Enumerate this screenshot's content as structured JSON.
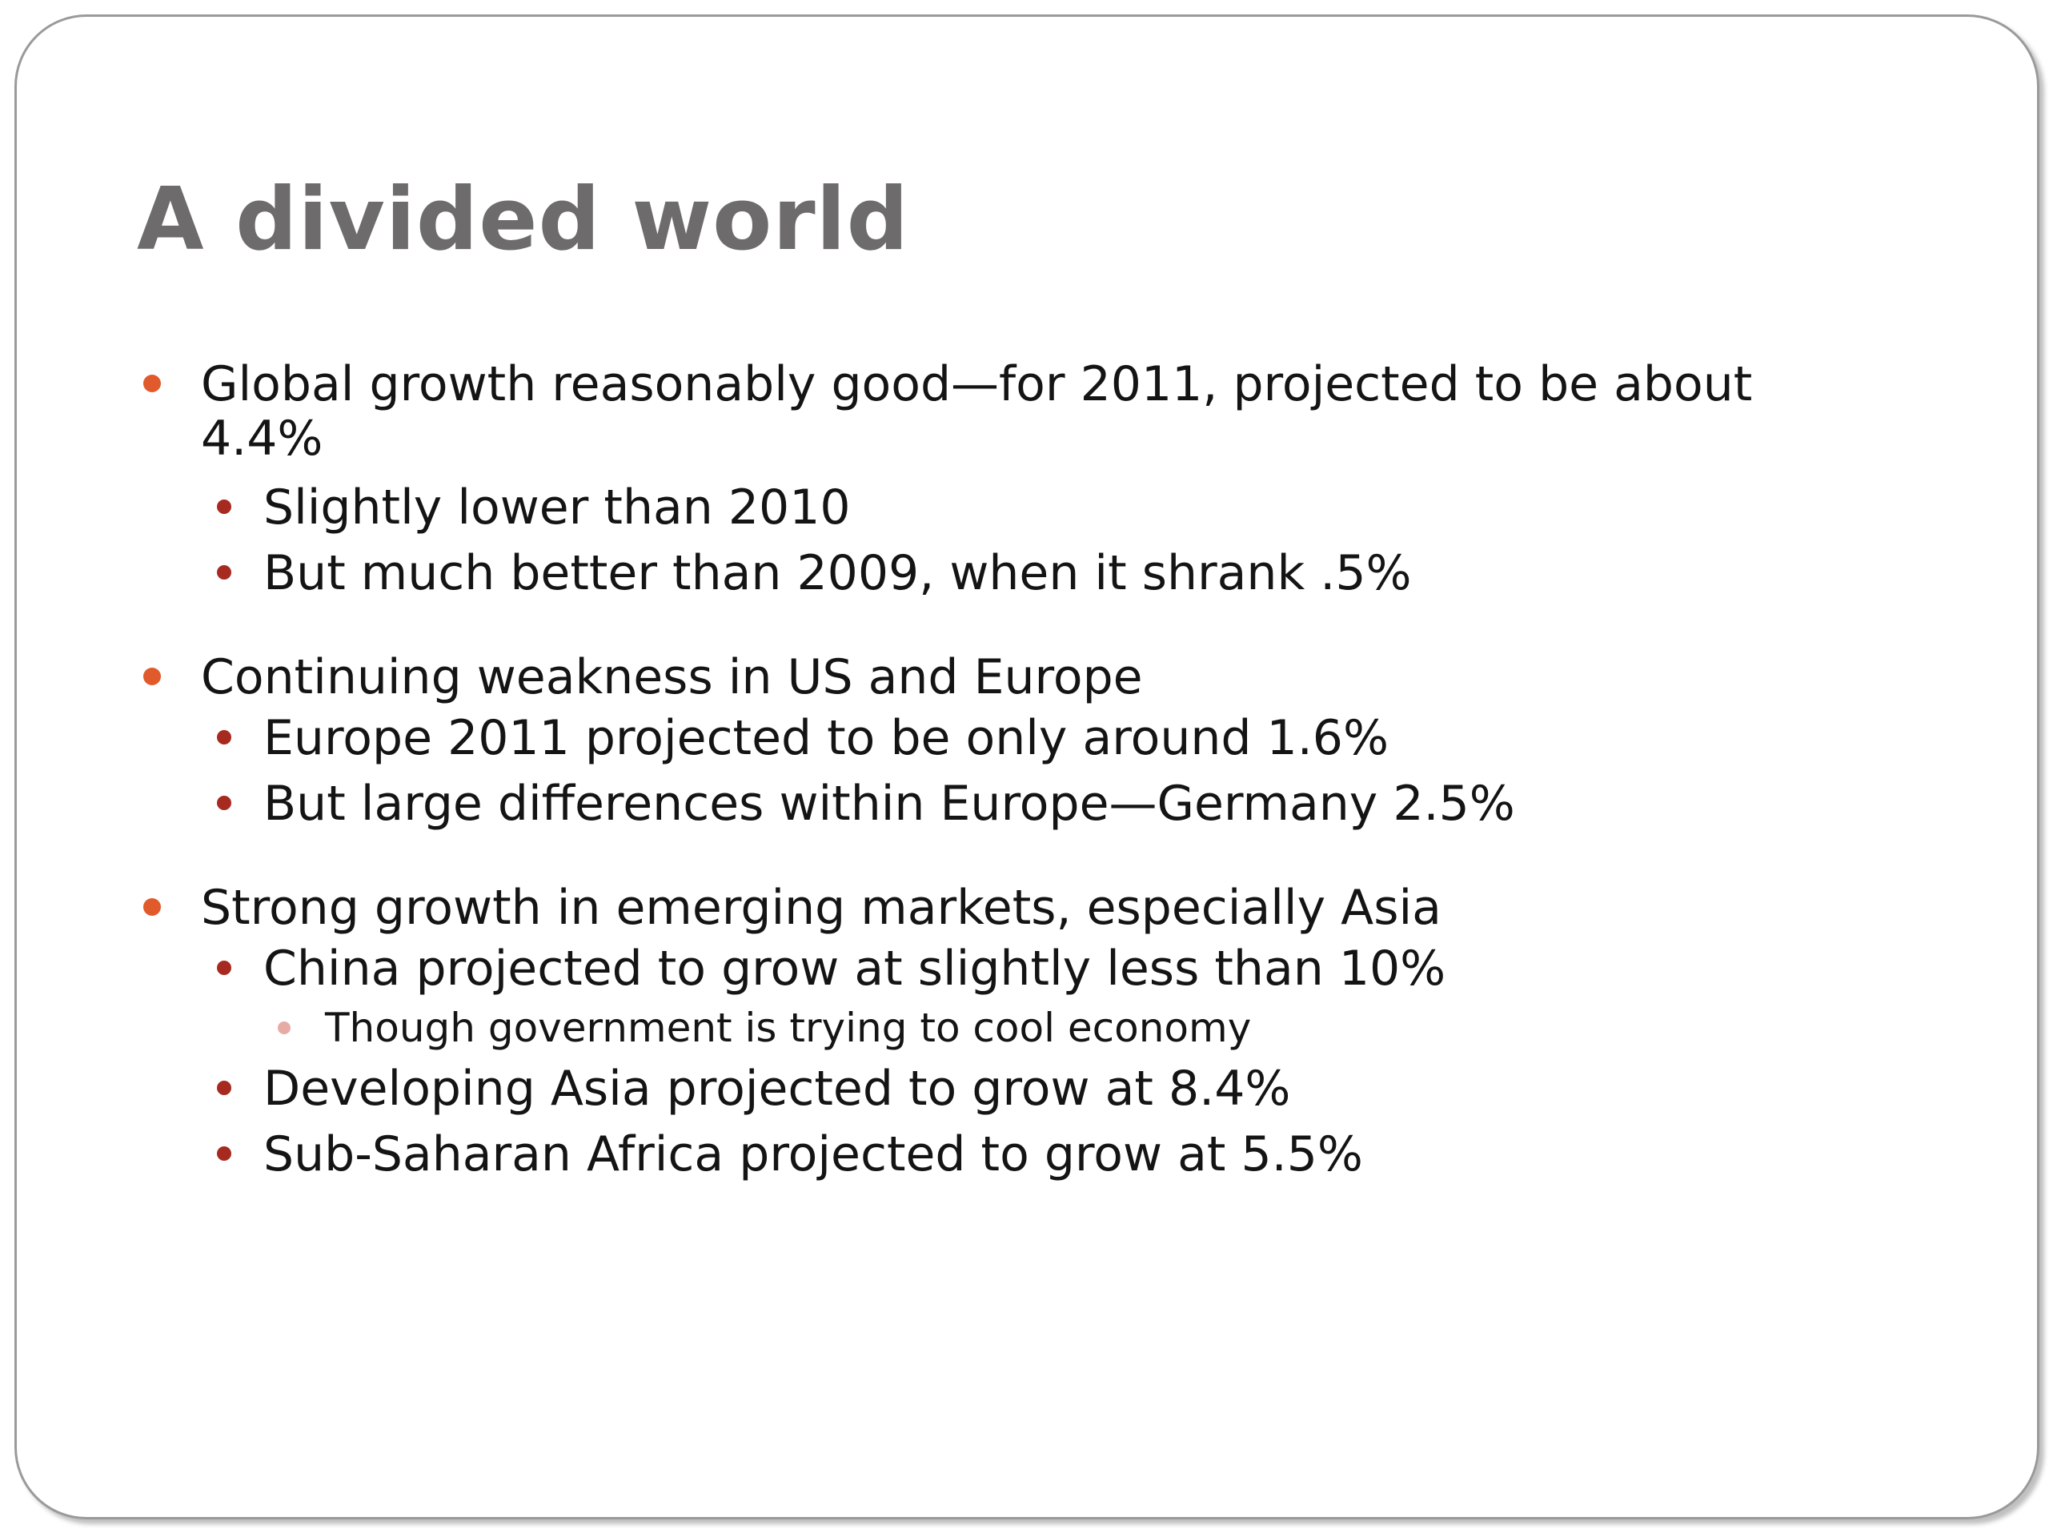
{
  "slide": {
    "title": "A divided world",
    "colors": {
      "level1_bullet": "#e05a2b",
      "level2_bullet": "#a62a1f",
      "level3_bullet": "#e6aba4",
      "title": "#6d6b6b"
    },
    "groups": [
      {
        "text": "Global growth reasonably good—for 2011, projected to be about 4.4%",
        "items": [
          {
            "text": "Slightly lower than 2010"
          },
          {
            "text": "But much better than 2009, when it shrank .5%"
          }
        ]
      },
      {
        "text": "Continuing weakness in US and Europe",
        "items": [
          {
            "text": "Europe 2011 projected to be only around 1.6%"
          },
          {
            "text": "But large differences within Europe—Germany 2.5%"
          }
        ]
      },
      {
        "text": "Strong growth in emerging markets, especially Asia",
        "items": [
          {
            "text": "China projected to grow at slightly less than 10%",
            "sub": "Though government is trying to cool economy"
          },
          {
            "text": "Developing Asia projected to grow at 8.4%"
          },
          {
            "text": "Sub-Saharan Africa projected to grow at 5.5%"
          }
        ]
      }
    ]
  }
}
